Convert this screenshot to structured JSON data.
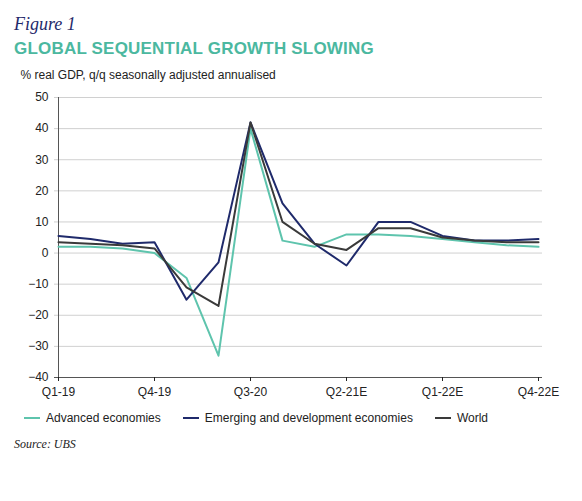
{
  "chart_data": {
    "type": "line",
    "figure_label": "Figure 1",
    "title": "GLOBAL SEQUENTIAL GROWTH SLOWING",
    "y_label": "% real GDP, q/q seasonally adjusted annualised",
    "source": "Source: UBS",
    "categories": [
      "Q1-19",
      null,
      null,
      "Q4-19",
      null,
      null,
      "Q3-20",
      null,
      null,
      "Q2-21E",
      null,
      null,
      "Q1-22E",
      null,
      null,
      "Q4-22E"
    ],
    "series": [
      {
        "name": "Advanced economies",
        "color": "#5ec4ad",
        "values": [
          2,
          2,
          1.5,
          0,
          -8,
          -33,
          40,
          4,
          2,
          6,
          6,
          5.5,
          4.5,
          3.5,
          2.5,
          2
        ]
      },
      {
        "name": "Emerging and development economies",
        "color": "#1f2a6b",
        "values": [
          5.5,
          4.5,
          3,
          3.5,
          -15,
          -3,
          42,
          16,
          3,
          -4,
          10,
          10,
          5.5,
          4,
          4,
          4.5
        ]
      },
      {
        "name": "World",
        "color": "#3a3a3a",
        "values": [
          3.5,
          3,
          2.5,
          1.5,
          -11,
          -17,
          42,
          10,
          3,
          1,
          8,
          8,
          5,
          4,
          3.5,
          3.5
        ]
      }
    ],
    "ylim": [
      -40,
      50
    ],
    "yticks": [
      -40,
      -30,
      -20,
      -10,
      0,
      10,
      20,
      30,
      40,
      50
    ],
    "grid": true,
    "legend": "bottom"
  }
}
